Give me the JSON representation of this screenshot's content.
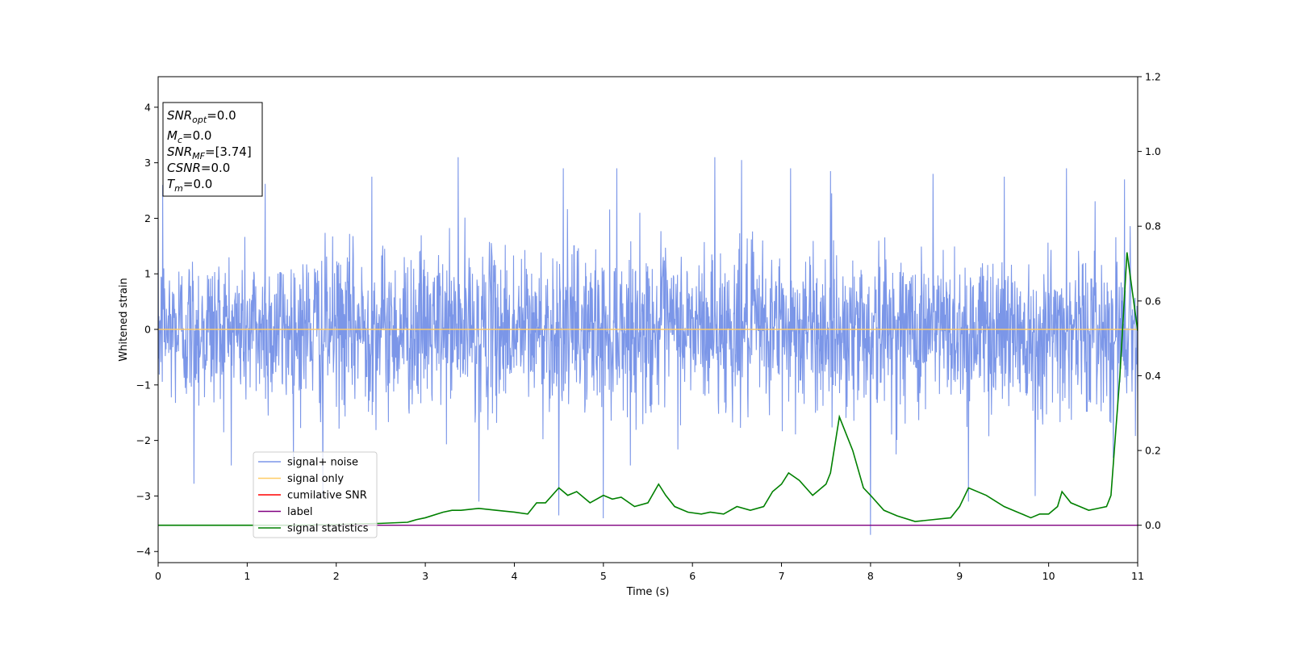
{
  "chart_data": {
    "type": "line",
    "xlabel": "Time (s)",
    "ylabel": "Whitened strain",
    "xlim": [
      0,
      11
    ],
    "ylim": [
      -4.2,
      4.55
    ],
    "y2lim": [
      -0.1,
      1.2
    ],
    "xticks": [
      0,
      1,
      2,
      3,
      4,
      5,
      6,
      7,
      8,
      9,
      10,
      11
    ],
    "yticks": [
      -4,
      -3,
      -2,
      -1,
      0,
      1,
      2,
      3,
      4
    ],
    "y2ticks": [
      "0.0",
      "0.2",
      "0.4",
      "0.6",
      "0.8",
      "1.0",
      "1.2"
    ],
    "grid": false,
    "legend_position": "lower-left",
    "legend": [
      {
        "label": "signal+ noise",
        "color": "#7b96e8"
      },
      {
        "label": "signal only",
        "color": "#ffcc66"
      },
      {
        "label": "cumilative SNR",
        "color": "#ff0000"
      },
      {
        "label": "label",
        "color": "#800080"
      },
      {
        "label": "signal statistics",
        "color": "#008000"
      }
    ],
    "annotation": [
      {
        "base": "SNR",
        "sub": "opt",
        "rest": "=0.0"
      },
      {
        "base": "M",
        "sub": "c",
        "rest": "=0.0"
      },
      {
        "base": "SNR",
        "sub": "MF",
        "rest": "=[3.74]"
      },
      {
        "base": "CSNR",
        "sub": "",
        "rest": "=0.0"
      },
      {
        "base": "T",
        "sub": "m",
        "rest": "=0.0"
      }
    ],
    "series": [
      {
        "name": "signal+ noise",
        "axis": "left",
        "kind": "noise",
        "color": "#7b96e8",
        "typical_range": [
          -1.5,
          1.5
        ],
        "peaks": [
          [
            0.05,
            2.6
          ],
          [
            0.4,
            -2.78
          ],
          [
            1.2,
            2.62
          ],
          [
            1.85,
            -3.0
          ],
          [
            2.4,
            2.75
          ],
          [
            3.37,
            3.1
          ],
          [
            3.6,
            -3.1
          ],
          [
            4.5,
            -3.35
          ],
          [
            4.55,
            2.9
          ],
          [
            5.0,
            -3.4
          ],
          [
            5.15,
            2.9
          ],
          [
            6.25,
            3.1
          ],
          [
            6.55,
            3.05
          ],
          [
            7.1,
            2.9
          ],
          [
            7.55,
            2.85
          ],
          [
            8.0,
            -3.7
          ],
          [
            8.7,
            2.8
          ],
          [
            9.1,
            -3.1
          ],
          [
            9.5,
            2.75
          ],
          [
            9.85,
            -3.0
          ],
          [
            10.2,
            2.9
          ],
          [
            10.85,
            2.7
          ]
        ]
      },
      {
        "name": "signal only",
        "axis": "left",
        "color": "#ffcc66",
        "x": [
          0,
          11
        ],
        "y": [
          0,
          0
        ]
      },
      {
        "name": "label",
        "axis": "right",
        "color": "#800080",
        "x": [
          0,
          11
        ],
        "y": [
          0,
          0
        ]
      },
      {
        "name": "signal statistics",
        "axis": "right",
        "color": "#008000",
        "x": [
          0,
          0.5,
          1.0,
          1.5,
          2.0,
          2.5,
          2.8,
          2.9,
          3.0,
          3.2,
          3.3,
          3.4,
          3.6,
          3.8,
          4.0,
          4.15,
          4.25,
          4.35,
          4.5,
          4.6,
          4.7,
          4.85,
          5.0,
          5.1,
          5.2,
          5.35,
          5.5,
          5.62,
          5.7,
          5.8,
          5.95,
          6.1,
          6.2,
          6.35,
          6.5,
          6.65,
          6.8,
          6.9,
          7.0,
          7.08,
          7.2,
          7.35,
          7.45,
          7.5,
          7.55,
          7.65,
          7.8,
          7.92,
          8.0,
          8.15,
          8.3,
          8.5,
          8.7,
          8.9,
          9.0,
          9.1,
          9.3,
          9.5,
          9.7,
          9.8,
          9.9,
          10.0,
          10.1,
          10.15,
          10.25,
          10.35,
          10.45,
          10.55,
          10.65,
          10.7,
          10.8,
          10.88,
          11.0
        ],
        "y": [
          0.0,
          0.0,
          0.0,
          0.0,
          0.002,
          0.005,
          0.008,
          0.015,
          0.02,
          0.035,
          0.04,
          0.04,
          0.045,
          0.04,
          0.035,
          0.03,
          0.06,
          0.06,
          0.1,
          0.08,
          0.09,
          0.06,
          0.08,
          0.07,
          0.075,
          0.05,
          0.06,
          0.11,
          0.08,
          0.05,
          0.035,
          0.03,
          0.035,
          0.03,
          0.05,
          0.04,
          0.05,
          0.09,
          0.11,
          0.14,
          0.12,
          0.08,
          0.1,
          0.11,
          0.14,
          0.29,
          0.2,
          0.1,
          0.08,
          0.04,
          0.025,
          0.01,
          0.015,
          0.02,
          0.05,
          0.1,
          0.08,
          0.05,
          0.03,
          0.02,
          0.03,
          0.03,
          0.05,
          0.09,
          0.06,
          0.05,
          0.04,
          0.045,
          0.05,
          0.08,
          0.4,
          0.73,
          0.52
        ]
      }
    ]
  }
}
